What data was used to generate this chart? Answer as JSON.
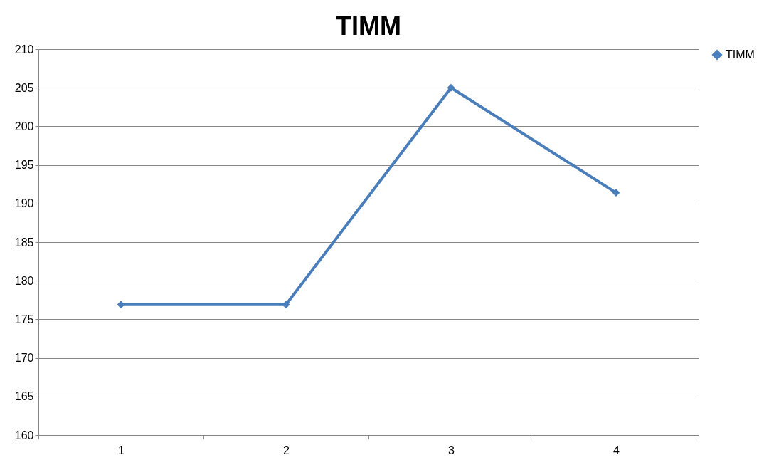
{
  "chart_data": {
    "type": "line",
    "title": "TIMM",
    "categories": [
      "1",
      "2",
      "3",
      "4"
    ],
    "series": [
      {
        "name": "TIMM",
        "color": "#4a7ebb",
        "values": [
          176.9,
          176.9,
          205,
          191.4
        ]
      }
    ],
    "ylim": [
      160,
      210
    ],
    "yticks": [
      160,
      165,
      170,
      175,
      180,
      185,
      190,
      195,
      200,
      205,
      210
    ],
    "grid": "y",
    "legend": "right",
    "marker": "diamond",
    "line_style": "solid"
  }
}
